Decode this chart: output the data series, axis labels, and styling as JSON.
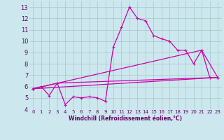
{
  "background_color": "#cce8ee",
  "grid_color": "#aacccc",
  "line_color": "#cc00aa",
  "xlabel": "Windchill (Refroidissement éolien,°C)",
  "xlabel_color": "#660066",
  "xlim": [
    -0.5,
    23.5
  ],
  "ylim": [
    4,
    13.5
  ],
  "xticks": [
    0,
    1,
    2,
    3,
    4,
    5,
    6,
    7,
    8,
    9,
    10,
    11,
    12,
    13,
    14,
    15,
    16,
    17,
    18,
    19,
    20,
    21,
    22,
    23
  ],
  "yticks": [
    4,
    5,
    6,
    7,
    8,
    9,
    10,
    11,
    12,
    13
  ],
  "series": [
    {
      "x": [
        0,
        1,
        2,
        3,
        4,
        5,
        6,
        7,
        8,
        9,
        10,
        11,
        12,
        13,
        14,
        15,
        16,
        17,
        18,
        19,
        20,
        21,
        22,
        23
      ],
      "y": [
        5.8,
        6.0,
        5.2,
        6.3,
        4.4,
        5.1,
        5.0,
        5.1,
        5.0,
        4.7,
        9.5,
        11.2,
        13.0,
        12.0,
        11.8,
        10.5,
        10.2,
        10.0,
        9.2,
        9.2,
        8.0,
        9.2,
        6.8,
        6.8
      ]
    },
    {
      "x": [
        0,
        3,
        23
      ],
      "y": [
        5.8,
        6.3,
        6.8
      ]
    },
    {
      "x": [
        0,
        21,
        23
      ],
      "y": [
        5.8,
        9.2,
        6.8
      ]
    },
    {
      "x": [
        0,
        23
      ],
      "y": [
        5.8,
        6.8
      ]
    }
  ]
}
